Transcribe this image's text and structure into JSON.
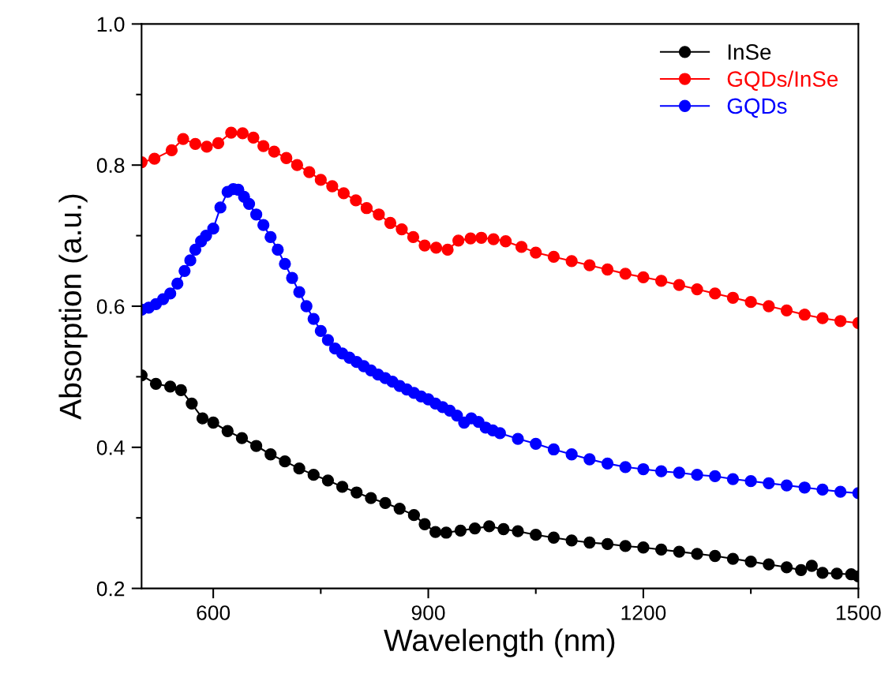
{
  "chart_data": {
    "type": "line",
    "xlabel": "Wavelength (nm)",
    "ylabel": "Absorption (a.u.)",
    "xlim": [
      500,
      1500
    ],
    "ylim": [
      0.2,
      1.0
    ],
    "xticks": [
      600,
      {
        "value": 750,
        "label": null
      },
      900,
      {
        "value": 1050,
        "label": null
      },
      1200,
      {
        "value": 1350,
        "label": null
      },
      1500
    ],
    "yticks": [
      0.2,
      {
        "value": 0.3,
        "label": null
      },
      0.4,
      {
        "value": 0.5,
        "label": null
      },
      0.6,
      {
        "value": 0.7,
        "label": null
      },
      0.8,
      {
        "value": 0.9,
        "label": null
      },
      {
        "value": 1.0,
        "label": "1.0"
      }
    ],
    "legend": "top right",
    "marker": "circle",
    "line_style": "solid",
    "series": [
      {
        "name": "InSe",
        "color": "#000000",
        "x": [
          500,
          520,
          540,
          555,
          570,
          585,
          600,
          620,
          640,
          660,
          680,
          700,
          720,
          740,
          760,
          780,
          800,
          820,
          840,
          860,
          880,
          895,
          910,
          925,
          945,
          965,
          985,
          1005,
          1025,
          1050,
          1075,
          1100,
          1125,
          1150,
          1175,
          1200,
          1225,
          1250,
          1275,
          1300,
          1325,
          1350,
          1375,
          1400,
          1420,
          1435,
          1450,
          1470,
          1490,
          1500
        ],
        "values": [
          0.502,
          0.49,
          0.486,
          0.481,
          0.462,
          0.441,
          0.435,
          0.423,
          0.413,
          0.402,
          0.39,
          0.38,
          0.37,
          0.361,
          0.353,
          0.344,
          0.336,
          0.328,
          0.321,
          0.313,
          0.304,
          0.291,
          0.28,
          0.279,
          0.282,
          0.285,
          0.288,
          0.284,
          0.281,
          0.276,
          0.272,
          0.268,
          0.265,
          0.263,
          0.26,
          0.258,
          0.255,
          0.252,
          0.249,
          0.246,
          0.242,
          0.238,
          0.234,
          0.23,
          0.226,
          0.232,
          0.222,
          0.221,
          0.22,
          0.217
        ]
      },
      {
        "name": "GQDs/InSe",
        "color": "#ff0000",
        "x": [
          500,
          518,
          542,
          558,
          575,
          591,
          607,
          625,
          641,
          656,
          670,
          685,
          702,
          717,
          734,
          750,
          766,
          782,
          799,
          814,
          831,
          847,
          863,
          879,
          895,
          911,
          927,
          942,
          959,
          974,
          991,
          1008,
          1030,
          1050,
          1075,
          1100,
          1125,
          1150,
          1175,
          1200,
          1225,
          1250,
          1275,
          1300,
          1325,
          1350,
          1375,
          1400,
          1425,
          1450,
          1475,
          1500
        ],
        "values": [
          0.804,
          0.809,
          0.821,
          0.837,
          0.83,
          0.826,
          0.831,
          0.846,
          0.845,
          0.839,
          0.827,
          0.819,
          0.81,
          0.8,
          0.79,
          0.779,
          0.77,
          0.76,
          0.75,
          0.739,
          0.73,
          0.718,
          0.709,
          0.698,
          0.686,
          0.683,
          0.68,
          0.693,
          0.696,
          0.697,
          0.695,
          0.692,
          0.684,
          0.676,
          0.67,
          0.664,
          0.658,
          0.652,
          0.646,
          0.641,
          0.636,
          0.63,
          0.624,
          0.618,
          0.612,
          0.606,
          0.6,
          0.594,
          0.588,
          0.583,
          0.579,
          0.576
        ]
      },
      {
        "name": "GQDs",
        "color": "#0000ff",
        "x": [
          500,
          510,
          520,
          530,
          540,
          550,
          560,
          568,
          575,
          583,
          590,
          600,
          610,
          620,
          628,
          635,
          643,
          650,
          660,
          670,
          680,
          690,
          700,
          710,
          720,
          730,
          740,
          750,
          760,
          770,
          780,
          790,
          800,
          810,
          820,
          830,
          840,
          850,
          860,
          870,
          880,
          890,
          900,
          910,
          920,
          930,
          940,
          950,
          960,
          970,
          980,
          990,
          1000,
          1025,
          1050,
          1075,
          1100,
          1125,
          1150,
          1175,
          1200,
          1225,
          1250,
          1275,
          1300,
          1325,
          1350,
          1375,
          1400,
          1425,
          1450,
          1475,
          1500
        ],
        "values": [
          0.595,
          0.598,
          0.603,
          0.61,
          0.618,
          0.632,
          0.65,
          0.665,
          0.68,
          0.692,
          0.7,
          0.71,
          0.74,
          0.762,
          0.766,
          0.765,
          0.755,
          0.745,
          0.73,
          0.715,
          0.698,
          0.68,
          0.66,
          0.64,
          0.62,
          0.6,
          0.582,
          0.565,
          0.552,
          0.54,
          0.533,
          0.527,
          0.521,
          0.515,
          0.509,
          0.503,
          0.498,
          0.493,
          0.487,
          0.482,
          0.477,
          0.472,
          0.468,
          0.462,
          0.457,
          0.452,
          0.445,
          0.435,
          0.441,
          0.436,
          0.428,
          0.424,
          0.42,
          0.412,
          0.405,
          0.397,
          0.39,
          0.383,
          0.377,
          0.372,
          0.369,
          0.366,
          0.364,
          0.361,
          0.359,
          0.355,
          0.352,
          0.349,
          0.346,
          0.343,
          0.34,
          0.337,
          0.335
        ]
      }
    ]
  }
}
